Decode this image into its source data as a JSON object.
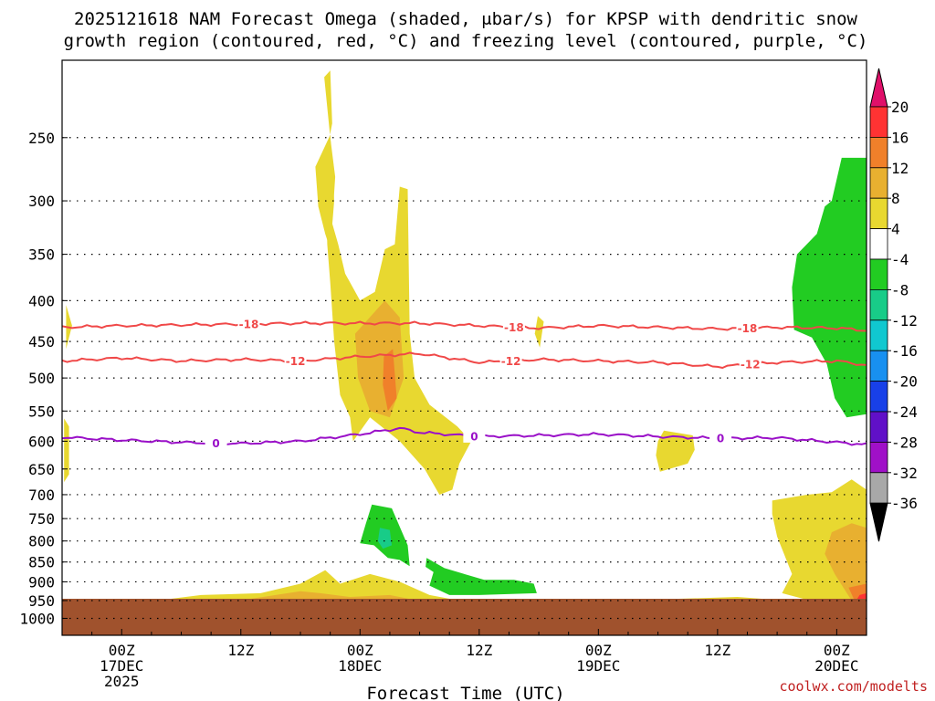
{
  "chart_data": {
    "type": "contour",
    "title_line1": "2025121618 NAM Forecast Omega (shaded, μbar/s) for KPSP with dendritic snow",
    "title_line2": "growth region (contoured, red, °C) and freezing level (contoured, purple, °C)",
    "xlabel": "Forecast Time (UTC)",
    "credit": "coolwx.com/modelts",
    "ylabel": "",
    "y_axis": {
      "scale": "log-pressure",
      "range_hpa": [
        1050,
        200
      ],
      "ticks": [
        250,
        300,
        350,
        400,
        450,
        500,
        550,
        600,
        650,
        700,
        750,
        800,
        850,
        900,
        950,
        1000
      ]
    },
    "x_axis": {
      "range_hours": [
        -6,
        75
      ],
      "ticks": [
        {
          "hour": 0,
          "line1": "00Z",
          "line2": "17DEC",
          "line3": "2025"
        },
        {
          "hour": 12,
          "line1": "12Z",
          "line2": "",
          "line3": ""
        },
        {
          "hour": 24,
          "line1": "00Z",
          "line2": "18DEC",
          "line3": ""
        },
        {
          "hour": 36,
          "line1": "12Z",
          "line2": "",
          "line3": ""
        },
        {
          "hour": 48,
          "line1": "00Z",
          "line2": "19DEC",
          "line3": ""
        },
        {
          "hour": 60,
          "line1": "12Z",
          "line2": "",
          "line3": ""
        },
        {
          "hour": 72,
          "line1": "00Z",
          "line2": "20DEC",
          "line3": ""
        }
      ]
    },
    "colorbar": {
      "labels": [
        "20",
        "16",
        "12",
        "8",
        "4",
        "-4",
        "-8",
        "-12",
        "-16",
        "-20",
        "-24",
        "-28",
        "-32",
        "-36"
      ],
      "colors": [
        "#ff3333",
        "#f0802a",
        "#e8b030",
        "#e8d830",
        "#ffffff",
        "#22cc22",
        "#18cc88",
        "#10c8d0",
        "#1890f0",
        "#1840e8",
        "#6010c8",
        "#a010c8",
        "#a8a8a8"
      ],
      "top_arrow_color": "#e0106a",
      "bottom_arrow_color": "#000000"
    },
    "terrain": {
      "surface_pressure_hpa": 945,
      "color": "#a0522d"
    },
    "contours": [
      {
        "name": "isotherm -18",
        "label": "-18",
        "color": "#f04848",
        "hours": [
          -6,
          0,
          6,
          12,
          18,
          24,
          30,
          36,
          42,
          48,
          54,
          60,
          66,
          72,
          75
        ],
        "pressure": [
          432,
          430,
          429,
          428,
          427,
          427,
          427,
          430,
          433,
          430,
          432,
          434,
          432,
          433,
          436
        ],
        "label_hours": [
          12.8,
          39.5,
          63
        ]
      },
      {
        "name": "isotherm -12",
        "label": "-12",
        "color": "#f04848",
        "hours": [
          -6,
          0,
          6,
          12,
          18,
          24,
          30,
          36,
          42,
          48,
          54,
          60,
          66,
          72,
          75
        ],
        "pressure": [
          476,
          472,
          476,
          474,
          476,
          470,
          466,
          478,
          474,
          476,
          478,
          484,
          478,
          476,
          482
        ],
        "label_hours": [
          17.5,
          39.2,
          63.3
        ]
      },
      {
        "name": "freezing level 0",
        "label": "0",
        "color": "#9a10c8",
        "hours": [
          -6,
          0,
          6,
          12,
          18,
          24,
          28,
          30,
          36,
          42,
          48,
          54,
          60,
          66,
          72,
          75
        ],
        "pressure": [
          593,
          598,
          602,
          604,
          600,
          588,
          578,
          585,
          592,
          590,
          588,
          592,
          595,
          594,
          602,
          606
        ],
        "label_hours": [
          9.5,
          35.5,
          60.3
        ]
      }
    ],
    "omega_regions": [
      {
        "name": "ascent 4-8 left edge",
        "level": "4-8",
        "points": [
          [
            -5.8,
            562
          ],
          [
            -5.3,
            575
          ],
          [
            -5.3,
            660
          ],
          [
            -5.8,
            675
          ]
        ]
      },
      {
        "name": "ascent 4-8 small blob",
        "level": "4-8",
        "points": [
          [
            -5.6,
            405
          ],
          [
            -5.0,
            430
          ],
          [
            -5.6,
            460
          ]
        ]
      },
      {
        "name": "ascent 4-8 main column",
        "level": "4-8",
        "points": [
          [
            20.4,
            210
          ],
          [
            21.0,
            206
          ],
          [
            21.2,
            240
          ],
          [
            20.6,
            262
          ],
          [
            20.3,
            278
          ],
          [
            20.6,
            300
          ],
          [
            20.7,
            340
          ],
          [
            21.0,
            380
          ],
          [
            21.4,
            450
          ],
          [
            22.0,
            525
          ],
          [
            23.0,
            560
          ],
          [
            23.3,
            600
          ],
          [
            25.0,
            560
          ],
          [
            28.0,
            600
          ],
          [
            30.5,
            650
          ],
          [
            32.0,
            700
          ],
          [
            33.3,
            690
          ],
          [
            34.0,
            640
          ],
          [
            35.2,
            600
          ],
          [
            33.8,
            575
          ],
          [
            31.0,
            540
          ],
          [
            29.5,
            500
          ],
          [
            29.0,
            440
          ],
          [
            28.8,
            290
          ],
          [
            28.0,
            288
          ],
          [
            27.5,
            340
          ],
          [
            26.5,
            345
          ],
          [
            25.5,
            390
          ],
          [
            24.0,
            400
          ],
          [
            22.5,
            370
          ],
          [
            21.8,
            340
          ],
          [
            21.2,
            320
          ],
          [
            21.5,
            280
          ],
          [
            21.0,
            250
          ]
        ]
      },
      {
        "name": "ascent 4-8 mid-left column",
        "level": "4-8",
        "points": [
          [
            19.5,
            272
          ],
          [
            21.0,
            248
          ],
          [
            21.4,
            300
          ],
          [
            21.0,
            345
          ],
          [
            20.5,
            330
          ],
          [
            19.8,
            305
          ]
        ]
      },
      {
        "name": "ascent 8-12 inner",
        "level": "8-12",
        "points": [
          [
            23.5,
            440
          ],
          [
            26.5,
            400
          ],
          [
            28.0,
            420
          ],
          [
            28.4,
            500
          ],
          [
            27.0,
            560
          ],
          [
            25.0,
            550
          ],
          [
            23.8,
            500
          ]
        ]
      },
      {
        "name": "ascent 12-16 core",
        "level": "12-16",
        "points": [
          [
            26.4,
            470
          ],
          [
            27.3,
            460
          ],
          [
            27.7,
            530
          ],
          [
            26.8,
            550
          ],
          [
            26.3,
            510
          ]
        ]
      },
      {
        "name": "ascent 4-8 near 09Z 18DEC",
        "level": "4-8",
        "points": [
          [
            41.9,
            418
          ],
          [
            42.5,
            425
          ],
          [
            42.1,
            458
          ],
          [
            41.6,
            440
          ]
        ]
      },
      {
        "name": "ascent 4-8 19DEC blob",
        "level": "4-8",
        "points": [
          [
            54.6,
            582
          ],
          [
            57.5,
            590
          ],
          [
            57.7,
            615
          ],
          [
            57.0,
            640
          ],
          [
            54.2,
            655
          ],
          [
            53.8,
            625
          ],
          [
            54.0,
            600
          ]
        ]
      },
      {
        "name": "ascent 4-8 lower right",
        "level": "4-8",
        "points": [
          [
            65.5,
            712
          ],
          [
            69.0,
            700
          ],
          [
            71.5,
            695
          ],
          [
            73.5,
            670
          ],
          [
            75.0,
            690
          ],
          [
            75.0,
            960
          ],
          [
            70.0,
            955
          ],
          [
            66.5,
            930
          ],
          [
            67.5,
            880
          ],
          [
            66.0,
            790
          ],
          [
            65.5,
            740
          ]
        ]
      },
      {
        "name": "ascent 8-12 lower right",
        "level": "8-12",
        "points": [
          [
            71.5,
            780
          ],
          [
            73.5,
            760
          ],
          [
            75.0,
            770
          ],
          [
            75.0,
            945
          ],
          [
            73.5,
            950
          ],
          [
            71.8,
            880
          ],
          [
            70.8,
            830
          ]
        ]
      },
      {
        "name": "ascent 12-16 lower right",
        "level": "12-16",
        "points": [
          [
            73.2,
            915
          ],
          [
            75.0,
            905
          ],
          [
            75.0,
            945
          ],
          [
            73.8,
            950
          ]
        ]
      },
      {
        "name": "ascent 16-20 lower right",
        "level": "16-20",
        "points": [
          [
            74.3,
            935
          ],
          [
            75.0,
            930
          ],
          [
            75.0,
            945
          ],
          [
            74.0,
            948
          ]
        ]
      },
      {
        "name": "ascent 4-8 low-level band",
        "level": "4-8",
        "points": [
          [
            3.5,
            950
          ],
          [
            8.0,
            935
          ],
          [
            14.0,
            930
          ],
          [
            18.0,
            905
          ],
          [
            20.5,
            870
          ],
          [
            22.0,
            905
          ],
          [
            25.0,
            880
          ],
          [
            28.0,
            900
          ],
          [
            31.0,
            935
          ],
          [
            34.0,
            950
          ],
          [
            38.0,
            950
          ],
          [
            36.0,
            955
          ],
          [
            4.0,
            957
          ]
        ]
      },
      {
        "name": "ascent 4-8 low-level band east",
        "level": "4-8",
        "points": [
          [
            42.0,
            955
          ],
          [
            55.0,
            946
          ],
          [
            62.0,
            940
          ],
          [
            66.0,
            948
          ],
          [
            68.0,
            956
          ],
          [
            42.0,
            958
          ]
        ]
      },
      {
        "name": "ascent 8-12 low-level band",
        "level": "8-12",
        "points": [
          [
            7.0,
            950
          ],
          [
            13.0,
            945
          ],
          [
            18.0,
            925
          ],
          [
            20.0,
            930
          ],
          [
            23.0,
            940
          ],
          [
            27.0,
            935
          ],
          [
            29.5,
            948
          ],
          [
            7.0,
            952
          ]
        ]
      },
      {
        "name": "descent green upper right",
        "level": "-4 to -8",
        "points": [
          [
            70.8,
            305
          ],
          [
            71.5,
            300
          ],
          [
            72.5,
            265
          ],
          [
            75.0,
            265
          ],
          [
            75.0,
            380
          ],
          [
            75.0,
            555
          ],
          [
            73.0,
            560
          ],
          [
            71.8,
            530
          ],
          [
            71.0,
            480
          ],
          [
            69.5,
            445
          ],
          [
            67.7,
            435
          ],
          [
            67.5,
            385
          ],
          [
            68.0,
            350
          ],
          [
            70.0,
            330
          ]
        ]
      },
      {
        "name": "descent green mid",
        "level": "-4 to -8",
        "points": [
          [
            25.2,
            720
          ],
          [
            27.2,
            728
          ],
          [
            28.8,
            810
          ],
          [
            29.0,
            860
          ],
          [
            28.0,
            845
          ],
          [
            26.8,
            840
          ],
          [
            25.4,
            810
          ],
          [
            24.0,
            805
          ],
          [
            24.6,
            760
          ]
        ]
      },
      {
        "name": "descent teal core",
        "level": "-8 to -12",
        "points": [
          [
            26.0,
            770
          ],
          [
            27.0,
            775
          ],
          [
            27.2,
            810
          ],
          [
            26.3,
            818
          ],
          [
            25.8,
            800
          ]
        ]
      },
      {
        "name": "descent green band",
        "level": "-4 to -8",
        "points": [
          [
            30.7,
            840
          ],
          [
            32.5,
            865
          ],
          [
            36.5,
            895
          ],
          [
            39.5,
            895
          ],
          [
            41.5,
            905
          ],
          [
            41.8,
            930
          ],
          [
            36.0,
            935
          ],
          [
            33.0,
            935
          ],
          [
            31.0,
            910
          ],
          [
            31.4,
            875
          ],
          [
            30.6,
            862
          ]
        ]
      }
    ]
  }
}
